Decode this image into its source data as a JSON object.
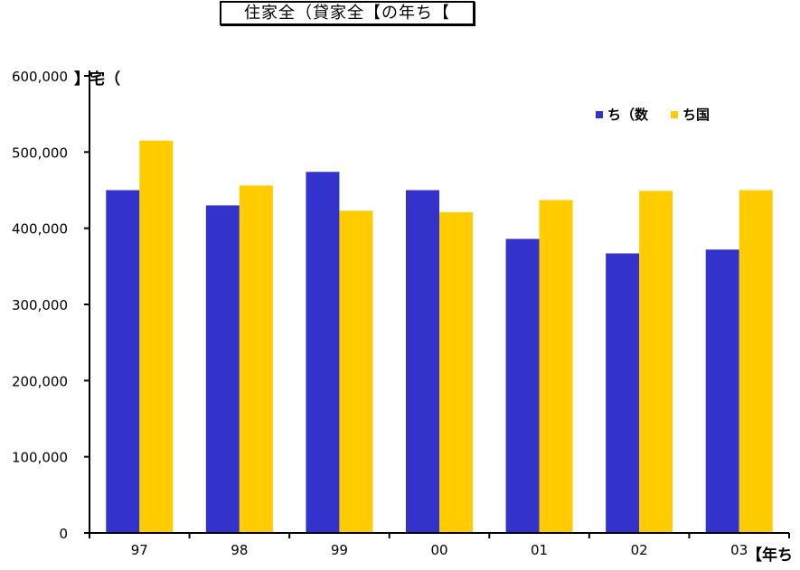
{
  "chart_data": {
    "type": "bar",
    "title": "住家全（貸家全【の年ち【",
    "ylabel": "】宅（",
    "xlabel": "【年ち",
    "categories": [
      "97",
      "98",
      "99",
      "00",
      "01",
      "02",
      "03"
    ],
    "series": [
      {
        "name": "ち（数",
        "color": "#3333cc",
        "values": [
          450000,
          430000,
          474000,
          450000,
          386000,
          367000,
          372000
        ]
      },
      {
        "name": "ち国",
        "color": "#ffcc00",
        "values": [
          515000,
          456000,
          423000,
          421000,
          437000,
          449000,
          450000
        ]
      }
    ],
    "ylim": [
      0,
      600000
    ],
    "yticks": [
      "0",
      "100,000",
      "200,000",
      "300,000",
      "400,000",
      "500,000",
      "600,000"
    ],
    "grid": false,
    "legend_position": "top-right"
  }
}
